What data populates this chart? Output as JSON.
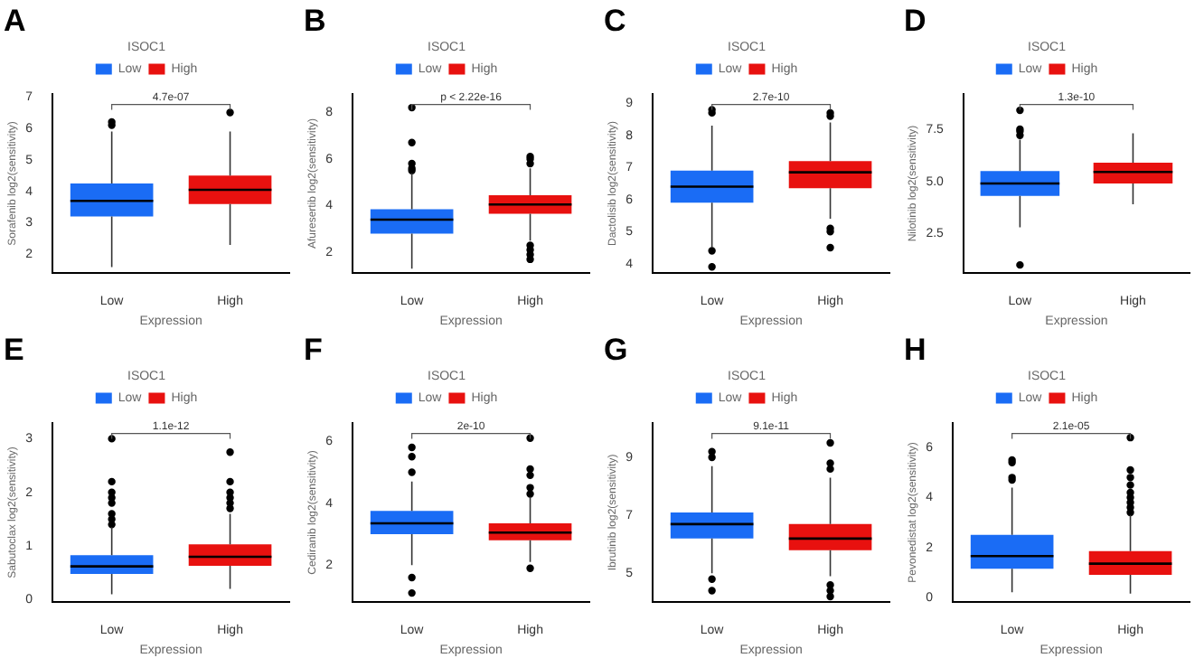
{
  "chart_data": [
    {
      "type": "box",
      "title": "A",
      "xlabel": "Expression",
      "ylabel": "Sorafenib log2(sensitivity)",
      "legend_title": "ISOC1",
      "legend": "top",
      "grid": false,
      "categories": [
        "Low",
        "High"
      ],
      "ylim": [
        1.4,
        7.1
      ],
      "yticks": [
        2,
        3,
        4,
        5,
        6,
        7
      ],
      "annotations": [
        "4.7e-07"
      ],
      "series": [
        {
          "name": "Low",
          "color": "#1a6cf5",
          "boxes": [
            {
              "low": 1.6,
              "q1": 3.2,
              "median": 3.7,
              "q3": 4.25,
              "high": 5.9,
              "outliers": [
                6.1,
                6.2
              ]
            },
            null
          ]
        },
        {
          "name": "High",
          "color": "#e8110f",
          "boxes": [
            null,
            {
              "low": 2.3,
              "q1": 3.6,
              "median": 4.05,
              "q3": 4.5,
              "high": 5.9,
              "outliers": [
                6.5
              ]
            }
          ]
        }
      ]
    },
    {
      "type": "box",
      "title": "B",
      "xlabel": "Expression",
      "ylabel": "Afuresertib log2(sensitivity)",
      "legend_title": "ISOC1",
      "legend": "top",
      "grid": false,
      "categories": [
        "Low",
        "High"
      ],
      "ylim": [
        1.1,
        8.8
      ],
      "yticks": [
        2,
        4,
        6,
        8
      ],
      "annotations": [
        "p < 2.22e-16"
      ],
      "series": [
        {
          "name": "Low",
          "color": "#1a6cf5",
          "boxes": [
            {
              "low": 1.3,
              "q1": 2.8,
              "median": 3.4,
              "q3": 3.85,
              "high": 5.4,
              "outliers": [
                5.5,
                5.6,
                5.8,
                6.7,
                8.2
              ]
            },
            null
          ]
        },
        {
          "name": "High",
          "color": "#e8110f",
          "boxes": [
            null,
            {
              "low": 2.5,
              "q1": 3.65,
              "median": 4.05,
              "q3": 4.45,
              "high": 5.6,
              "outliers": [
                5.8,
                6.0,
                6.1,
                2.3,
                2.1,
                1.9,
                1.7
              ]
            }
          ]
        }
      ]
    },
    {
      "type": "box",
      "title": "C",
      "xlabel": "Expression",
      "ylabel": "Dactolisib log2(sensitivity)",
      "legend_title": "ISOC1",
      "legend": "top",
      "grid": false,
      "categories": [
        "Low",
        "High"
      ],
      "ylim": [
        3.7,
        9.3
      ],
      "yticks": [
        4,
        5,
        6,
        7,
        8,
        9
      ],
      "annotations": [
        "2.7e-10"
      ],
      "series": [
        {
          "name": "Low",
          "color": "#1a6cf5",
          "boxes": [
            {
              "low": 4.5,
              "q1": 5.9,
              "median": 6.4,
              "q3": 6.9,
              "high": 8.3,
              "outliers": [
                8.7,
                8.8,
                4.4,
                3.9
              ]
            },
            null
          ]
        },
        {
          "name": "High",
          "color": "#e8110f",
          "boxes": [
            null,
            {
              "low": 5.4,
              "q1": 6.35,
              "median": 6.85,
              "q3": 7.2,
              "high": 8.4,
              "outliers": [
                8.6,
                8.7,
                5.1,
                5.0,
                4.5
              ]
            }
          ]
        }
      ]
    },
    {
      "type": "box",
      "title": "D",
      "xlabel": "Expression",
      "ylabel": "Nilotinib log2(sensitivity)",
      "legend_title": "ISOC1",
      "legend": "top",
      "grid": false,
      "categories": [
        "Low",
        "High"
      ],
      "ylim": [
        0.6,
        9.2
      ],
      "yticks": [
        {
          "value": 2.5,
          "label": "2.5"
        },
        {
          "value": 5,
          "label": "5.0"
        },
        {
          "value": 7.5,
          "label": "7.5"
        }
      ],
      "annotations": [
        "1.3e-10"
      ],
      "series": [
        {
          "name": "Low",
          "color": "#1a6cf5",
          "boxes": [
            {
              "low": 2.8,
              "q1": 4.3,
              "median": 4.9,
              "q3": 5.5,
              "high": 7.0,
              "outliers": [
                7.2,
                7.4,
                7.5,
                8.4,
                1.0
              ]
            },
            null
          ]
        },
        {
          "name": "High",
          "color": "#e8110f",
          "boxes": [
            null,
            {
              "low": 3.9,
              "q1": 4.9,
              "median": 5.45,
              "q3": 5.9,
              "high": 7.3
            }
          ]
        }
      ]
    },
    {
      "type": "box",
      "title": "E",
      "xlabel": "Expression",
      "ylabel": "Sabutoclax log2(sensitivity)",
      "legend_title": "ISOC1",
      "legend": "top",
      "grid": false,
      "categories": [
        "Low",
        "High"
      ],
      "ylim": [
        -0.05,
        3.3
      ],
      "yticks": [
        0,
        1,
        2,
        3
      ],
      "annotations": [
        "1.1e-12"
      ],
      "series": [
        {
          "name": "Low",
          "color": "#1a6cf5",
          "boxes": [
            {
              "low": 0.1,
              "q1": 0.48,
              "median": 0.62,
              "q3": 0.83,
              "high": 1.35,
              "outliers": [
                1.4,
                1.5,
                1.6,
                1.8,
                1.9,
                2.0,
                2.2,
                3.0
              ]
            },
            null
          ]
        },
        {
          "name": "High",
          "color": "#e8110f",
          "boxes": [
            null,
            {
              "low": 0.2,
              "q1": 0.63,
              "median": 0.8,
              "q3": 1.03,
              "high": 1.6,
              "outliers": [
                1.7,
                1.8,
                1.9,
                2.0,
                2.2,
                2.75
              ]
            }
          ]
        }
      ]
    },
    {
      "type": "box",
      "title": "F",
      "xlabel": "Expression",
      "ylabel": "Cediranib log2(sensitivity)",
      "legend_title": "ISOC1",
      "legend": "top",
      "grid": false,
      "categories": [
        "Low",
        "High"
      ],
      "ylim": [
        0.8,
        6.6
      ],
      "yticks": [
        2,
        4,
        6
      ],
      "annotations": [
        "2e-10"
      ],
      "series": [
        {
          "name": "Low",
          "color": "#1a6cf5",
          "boxes": [
            {
              "low": 2.0,
              "q1": 3.0,
              "median": 3.35,
              "q3": 3.75,
              "high": 4.7,
              "outliers": [
                5.0,
                5.5,
                5.8,
                1.6,
                1.1
              ]
            },
            null
          ]
        },
        {
          "name": "High",
          "color": "#e8110f",
          "boxes": [
            null,
            {
              "low": 2.1,
              "q1": 2.8,
              "median": 3.05,
              "q3": 3.35,
              "high": 4.2,
              "outliers": [
                4.3,
                4.5,
                4.9,
                5.1,
                6.1,
                1.9
              ]
            }
          ]
        }
      ]
    },
    {
      "type": "box",
      "title": "G",
      "xlabel": "Expression",
      "ylabel": "Ibrutinib log2(sensitivity)",
      "legend_title": "ISOC1",
      "legend": "top",
      "grid": false,
      "categories": [
        "Low",
        "High"
      ],
      "ylim": [
        4.0,
        10.2
      ],
      "yticks": [
        5,
        7,
        9
      ],
      "annotations": [
        "9.1e-11"
      ],
      "series": [
        {
          "name": "Low",
          "color": "#1a6cf5",
          "boxes": [
            {
              "low": 5.0,
              "q1": 6.2,
              "median": 6.7,
              "q3": 7.1,
              "high": 8.7,
              "outliers": [
                9.0,
                9.2,
                4.8,
                4.4
              ]
            },
            null
          ]
        },
        {
          "name": "High",
          "color": "#e8110f",
          "boxes": [
            null,
            {
              "low": 4.9,
              "q1": 5.8,
              "median": 6.2,
              "q3": 6.7,
              "high": 8.3,
              "outliers": [
                8.6,
                8.8,
                9.5,
                4.6,
                4.4,
                4.2
              ]
            }
          ]
        }
      ]
    },
    {
      "type": "box",
      "title": "H",
      "xlabel": "Expression",
      "ylabel": "Pevonedistat log2(sensitivity)",
      "legend_title": "ISOC1",
      "legend": "top",
      "grid": false,
      "categories": [
        "Low",
        "High"
      ],
      "ylim": [
        -0.2,
        7
      ],
      "yticks": [
        0,
        2,
        4,
        6
      ],
      "annotations": [
        "2.1e-05"
      ],
      "series": [
        {
          "name": "Low",
          "color": "#1a6cf5",
          "boxes": [
            {
              "low": 0.2,
              "q1": 1.15,
              "median": 1.65,
              "q3": 2.5,
              "high": 4.4,
              "outliers": [
                4.7,
                4.8,
                5.4,
                5.5
              ]
            },
            null
          ]
        },
        {
          "name": "High",
          "color": "#e8110f",
          "boxes": [
            null,
            {
              "low": 0.15,
              "q1": 0.9,
              "median": 1.35,
              "q3": 1.85,
              "high": 3.3,
              "outliers": [
                3.4,
                3.6,
                3.8,
                4.0,
                4.2,
                4.5,
                4.8,
                5.1,
                6.4
              ]
            }
          ]
        }
      ]
    }
  ]
}
